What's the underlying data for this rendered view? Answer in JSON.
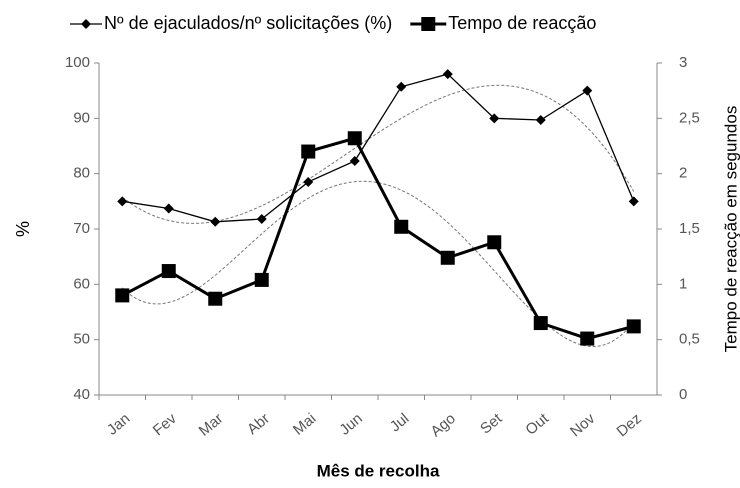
{
  "chart_data": {
    "type": "line",
    "categories": [
      "Jan",
      "Fev",
      "Mar",
      "Abr",
      "Mai",
      "Jun",
      "Jul",
      "Ago",
      "Set",
      "Out",
      "Nov",
      "Dez"
    ],
    "series": [
      {
        "name": "Nº de ejaculados/nº solicitações (%)",
        "color": "#000000",
        "marker": "diamond",
        "trendline_order": 3,
        "values": [
          75,
          73.7,
          71.3,
          71.8,
          78.5,
          82.3,
          95.7,
          98,
          90,
          89.7,
          95,
          75
        ]
      },
      {
        "name": "Tempo de reacção",
        "color": "#000000",
        "marker": "square",
        "axis": "y2",
        "trendline_order": 4,
        "values": [
          0.9,
          1.12,
          0.87,
          1.04,
          2.2,
          2.32,
          1.52,
          1.24,
          1.38,
          0.65,
          0.51,
          0.62
        ]
      }
    ],
    "ylabel": "%",
    "y2label": "Tempo de reacção em segundos",
    "xlabel": "Mês de recolha",
    "ylim": [
      40,
      100
    ],
    "yticks": [
      40,
      50,
      60,
      70,
      80,
      90,
      100
    ],
    "y2lim": [
      0,
      3
    ],
    "y2ticks": [
      0,
      {
        "value": 0.5,
        "label": "0,5"
      },
      1,
      {
        "value": 1.5,
        "label": "1,5"
      },
      2,
      {
        "value": 2.5,
        "label": "2,5"
      },
      3
    ],
    "legend": "top",
    "grid": false
  }
}
